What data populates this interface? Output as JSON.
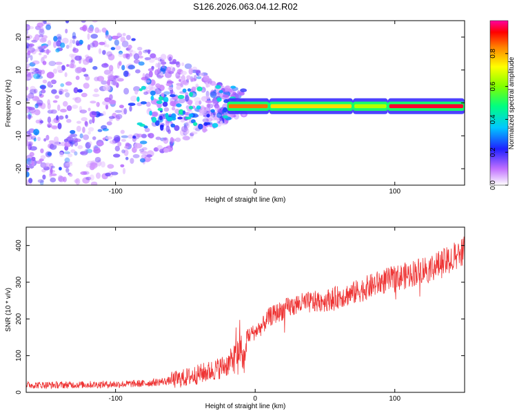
{
  "title": "S126.2026.063.04.12.R02",
  "chart_data": [
    {
      "type": "heatmap",
      "xlabel": "Height of straight line (km)",
      "ylabel": "Frequency (Hz)",
      "xlim": [
        -164,
        150
      ],
      "ylim": [
        -25,
        25
      ],
      "xticks": [
        -100,
        0,
        100
      ],
      "yticks": [
        -20,
        -10,
        0,
        10,
        20
      ],
      "colorbar": {
        "label": "Normalized spectral amplitude",
        "range": [
          0,
          1
        ],
        "ticks": [
          0.0,
          0.2,
          0.4,
          0.6,
          0.8
        ]
      },
      "line_frequency_hz": -1,
      "band_segments": [
        {
          "x_start": -20,
          "x_end": 10,
          "amplitude": 0.85
        },
        {
          "x_start": 10,
          "x_end": 70,
          "amplitude": 0.75
        },
        {
          "x_start": 70,
          "x_end": 95,
          "amplitude": 0.65
        },
        {
          "x_start": 95,
          "x_end": 150,
          "amplitude": 0.95
        }
      ],
      "scatter_region": {
        "x_start": -164,
        "x_end": -20,
        "amplitude": 0.2
      }
    },
    {
      "type": "line",
      "xlabel": "Height of straight line (km)",
      "ylabel": "SNR (10 * v/v)",
      "xlim": [
        -164,
        150
      ],
      "ylim": [
        0,
        450
      ],
      "xticks": [
        -100,
        0,
        100
      ],
      "yticks": [
        0,
        100,
        200,
        300,
        400
      ],
      "color": "#ee3333",
      "series": [
        {
          "name": "SNR",
          "x": [
            -164,
            -140,
            -120,
            -100,
            -80,
            -60,
            -50,
            -40,
            -30,
            -20,
            -15,
            -10,
            -8,
            -5,
            0,
            5,
            10,
            20,
            30,
            40,
            50,
            60,
            70,
            80,
            90,
            100,
            110,
            120,
            130,
            140,
            145,
            150
          ],
          "y": [
            20,
            20,
            21,
            22,
            24,
            32,
            40,
            50,
            60,
            75,
            95,
            120,
            80,
            155,
            165,
            180,
            205,
            225,
            240,
            245,
            250,
            260,
            270,
            285,
            300,
            310,
            320,
            335,
            345,
            360,
            380,
            390
          ]
        }
      ]
    }
  ]
}
